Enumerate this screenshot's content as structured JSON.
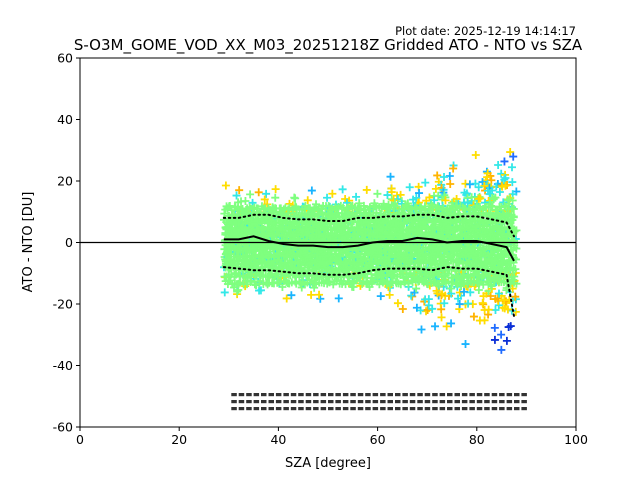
{
  "header": {
    "plot_date": "Plot date: 2025-12-19 14:14:17",
    "title": "S-O3M_GOME_VOD_XX_M03_20251218Z Gridded ATO - NTO vs SZA"
  },
  "colors": {
    "scatter_green": "#7fff7f",
    "scatter_cyan": "#33e8e8",
    "scatter_yellow": "#ffdd00",
    "scatter_orange": "#ffb300",
    "scatter_blue": "#1f6bff",
    "scatter_darkblue": "#0b2fd6",
    "scatter_lightblue": "#19b4ff",
    "axis": "#000000"
  },
  "chart_data": {
    "type": "scatter",
    "title": "S-O3M_GOME_VOD_XX_M03_20251218Z Gridded ATO - NTO vs SZA",
    "xlabel": "SZA [degree]",
    "ylabel": "ATO - NTO [DU]",
    "xlim": [
      0,
      100
    ],
    "ylim": [
      -60,
      60
    ],
    "xticks": [
      0,
      20,
      40,
      60,
      80,
      100
    ],
    "yticks": [
      -60,
      -40,
      -20,
      0,
      20,
      40,
      60
    ],
    "reference_line_y": 0,
    "scatter_sza_range": [
      29,
      88
    ],
    "series": [
      {
        "name": "median",
        "style": "solid",
        "x": [
          29,
          32,
          35,
          38,
          41,
          44,
          47,
          50,
          53,
          56,
          59,
          62,
          65,
          68,
          71,
          74,
          77,
          80,
          83,
          86,
          87.5
        ],
        "y": [
          1.0,
          1.0,
          2.0,
          0.5,
          -0.5,
          -1.0,
          -1.0,
          -1.5,
          -1.5,
          -1.0,
          0.0,
          0.5,
          0.5,
          1.5,
          1.0,
          0.0,
          0.5,
          0.5,
          -0.5,
          -1.5,
          -6.0
        ]
      },
      {
        "name": "upper_spread",
        "style": "dotted",
        "x": [
          29,
          32,
          35,
          38,
          41,
          44,
          47,
          50,
          53,
          56,
          59,
          62,
          65,
          68,
          71,
          74,
          77,
          80,
          83,
          86,
          87.5
        ],
        "y": [
          8,
          8,
          9,
          9,
          8,
          7.5,
          7.5,
          7,
          7,
          8,
          8,
          8.5,
          8.5,
          9,
          9,
          8,
          8.5,
          8.5,
          7.5,
          6.5,
          2
        ]
      },
      {
        "name": "lower_spread",
        "style": "dotted",
        "x": [
          29,
          32,
          35,
          38,
          41,
          44,
          47,
          50,
          53,
          56,
          59,
          62,
          65,
          68,
          71,
          74,
          77,
          80,
          83,
          86,
          87.5
        ],
        "y": [
          -8,
          -8.5,
          -9,
          -9,
          -9.5,
          -10,
          -10,
          -10.5,
          -10.5,
          -10,
          -9,
          -8.5,
          -8.5,
          -8.5,
          -9,
          -8,
          -8.5,
          -8.5,
          -9.5,
          -10.5,
          -24
        ]
      }
    ],
    "count_rows_note": "Three rows of tiny per-bin counts drawn near y = -52 between SZA 30 and 92 (too small to read)."
  }
}
